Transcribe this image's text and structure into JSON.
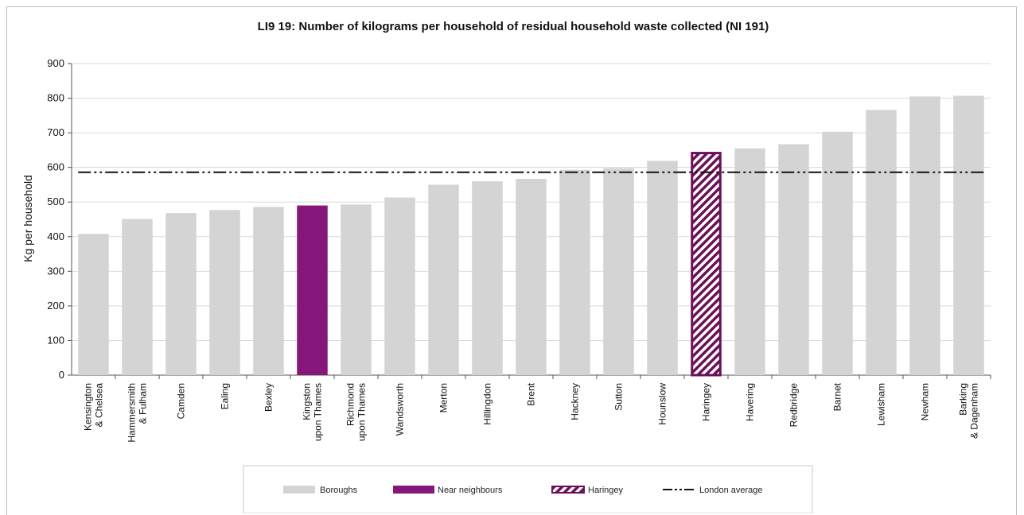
{
  "colors": {
    "boroughs": "#d4d4d4",
    "near_neighbours": "#86177a",
    "haringey": "#6b1058",
    "london_average": "#111111",
    "grid": "#d9d9d9"
  },
  "chart_data": {
    "type": "bar",
    "title": "LI9 19: Number of kilograms per household of residual household waste collected (NI 191)",
    "ylabel": "Kg per household",
    "ylim": [
      0,
      900
    ],
    "yticks": [
      0,
      100,
      200,
      300,
      400,
      500,
      600,
      700,
      800,
      900
    ],
    "grid": true,
    "categories": [
      [
        "Kensington",
        "& Chelsea"
      ],
      [
        "Hammersmith",
        "& Fulham"
      ],
      [
        "Camden"
      ],
      [
        "Ealing"
      ],
      [
        "Bexley"
      ],
      [
        "Kingston",
        "upon Thames"
      ],
      [
        "Richmond",
        "upon Thames"
      ],
      [
        "Wandsworth"
      ],
      [
        "Merton"
      ],
      [
        "Hillingdon"
      ],
      [
        "Brent"
      ],
      [
        "Hackney"
      ],
      [
        "Sutton"
      ],
      [
        "Hounslow"
      ],
      [
        "Haringey"
      ],
      [
        "Havering"
      ],
      [
        "Redbridge"
      ],
      [
        "Barnet"
      ],
      [
        "Lewisham"
      ],
      [
        "Newham"
      ],
      [
        "Barking",
        "& Dagenham"
      ]
    ],
    "values": [
      408,
      451,
      468,
      477,
      486,
      490,
      493,
      513,
      550,
      560,
      567,
      593,
      598,
      619,
      645,
      655,
      667,
      703,
      766,
      805,
      807
    ],
    "series_group": [
      "Boroughs",
      "Boroughs",
      "Boroughs",
      "Boroughs",
      "Boroughs",
      "Near neighbours",
      "Boroughs",
      "Boroughs",
      "Boroughs",
      "Boroughs",
      "Boroughs",
      "Boroughs",
      "Boroughs",
      "Boroughs",
      "Haringey",
      "Boroughs",
      "Boroughs",
      "Boroughs",
      "Boroughs",
      "Boroughs",
      "Boroughs"
    ],
    "london_average": 586,
    "legend": {
      "placement": "bottom",
      "items": [
        {
          "name": "Boroughs",
          "style": "fill-grey"
        },
        {
          "name": "Near neighbours",
          "style": "fill-purple"
        },
        {
          "name": "Haringey",
          "style": "hatched"
        },
        {
          "name": "London average",
          "style": "dash-dot-line"
        }
      ]
    }
  }
}
